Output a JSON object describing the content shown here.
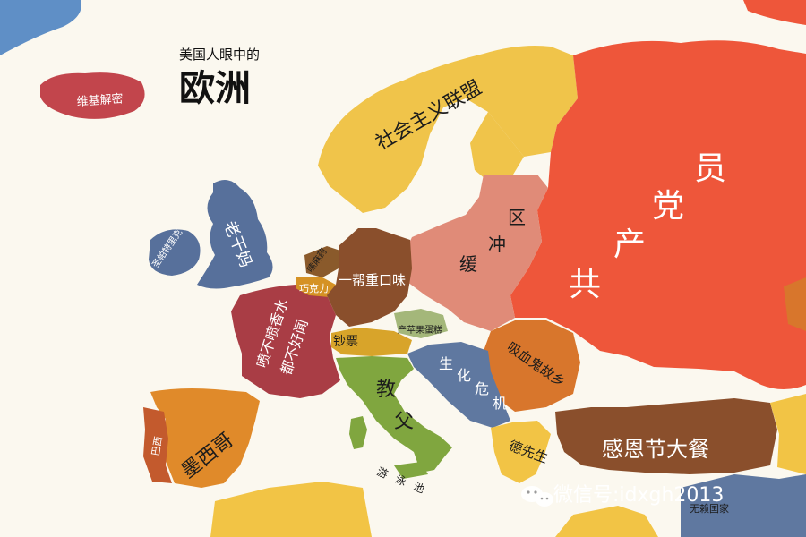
{
  "title": {
    "subtitle": "美国人眼中的",
    "main": "欧洲"
  },
  "colors": {
    "sea": "#fbf8ef",
    "iceland": "#c2454c",
    "uk": "#57709b",
    "ireland": "#57709b",
    "scandinavia": "#f0c44a",
    "france": "#a93d45",
    "benelux_nl": "#8a5a2b",
    "benelux_be": "#d59224",
    "switzerland": "#d8a42a",
    "germany": "#8a4f2c",
    "poland_east": "#e08b78",
    "russia": "#ee563a",
    "spain": "#e08a2a",
    "portugal": "#c35a2d",
    "italy": "#80a63f",
    "czech": "#a4b77a",
    "balkans": "#5f78a0",
    "romania": "#d8762c",
    "greece": "#f2c445",
    "turkey": "#8a4f2c",
    "africa": "#f2c445",
    "greenland": "#5f8fc6",
    "label_dark": "#1c1c1c"
  },
  "labels": {
    "iceland": "维基解密",
    "scandinavia": "社会主义联盟",
    "uk": "老干妈",
    "ireland": "圣帕特里克",
    "netherlands": "嗦麻药",
    "belgium": "巧克力",
    "germany": "一帮重口味",
    "buffer": [
      "缓",
      "冲",
      "区"
    ],
    "russia": [
      "共",
      "产",
      "党",
      "员"
    ],
    "france": [
      "喷不喷香水",
      "都不好闻"
    ],
    "switzerland": "钞票",
    "czech": "产苹果蛋糕",
    "romania": "吸血鬼故乡",
    "balkans": [
      "生",
      "化",
      "危",
      "机"
    ],
    "italy": [
      "教",
      "父"
    ],
    "spain": "墨西哥",
    "portugal": "巴西",
    "greece": "德先生",
    "turkey": "感恩节大餐",
    "mediterranean": "游泳池",
    "middle_east": "无赖国家"
  },
  "watermark": "微信号:idxgh2013"
}
